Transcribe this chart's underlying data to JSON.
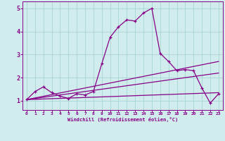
{
  "xlabel": "Windchill (Refroidissement éolien,°C)",
  "bg_color": "#d0ecec",
  "grid_color": "#a8d4d4",
  "line_color": "#880088",
  "xlim": [
    -0.5,
    23.5
  ],
  "ylim": [
    0.6,
    5.3
  ],
  "xticks": [
    0,
    1,
    2,
    3,
    4,
    5,
    6,
    7,
    8,
    9,
    10,
    11,
    12,
    13,
    14,
    15,
    16,
    17,
    18,
    19,
    20,
    21,
    22,
    23
  ],
  "yticks": [
    1,
    2,
    3,
    4,
    5
  ],
  "series1_x": [
    0,
    1,
    2,
    3,
    4,
    5,
    6,
    7,
    8,
    9,
    10,
    11,
    12,
    13,
    14,
    15,
    16,
    17,
    18,
    19,
    20,
    21,
    22,
    23
  ],
  "series1_y": [
    1.05,
    1.4,
    1.6,
    1.35,
    1.2,
    1.1,
    1.3,
    1.25,
    1.4,
    2.6,
    3.75,
    4.2,
    4.5,
    4.45,
    4.8,
    5.0,
    3.05,
    2.7,
    2.3,
    2.35,
    2.3,
    1.55,
    0.9,
    1.3
  ],
  "series2_x": [
    0,
    23
  ],
  "series2_y": [
    1.05,
    2.7
  ],
  "series3_x": [
    0,
    23
  ],
  "series3_y": [
    1.05,
    1.35
  ],
  "series4_x": [
    0,
    23
  ],
  "series4_y": [
    1.05,
    2.2
  ]
}
